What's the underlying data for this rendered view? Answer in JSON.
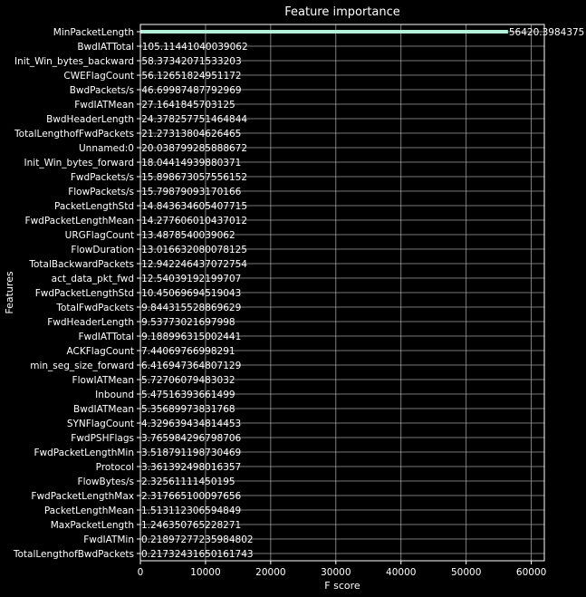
{
  "chart_data": {
    "type": "bar",
    "orientation": "horizontal",
    "title": "Feature importance",
    "xlabel": "F score",
    "ylabel": "Features",
    "xlim": [
      0,
      62000
    ],
    "xticks": [
      0,
      10000,
      20000,
      30000,
      40000,
      50000,
      60000
    ],
    "grid": true,
    "bar_color": "#b3f0d9",
    "background": "#000000",
    "categories": [
      "MinPacketLength",
      "BwdIATTotal",
      "Init_Win_bytes_backward",
      "CWEFlagCount",
      "BwdPackets/s",
      "FwdIATMean",
      "BwdHeaderLength",
      "TotalLengthofFwdPackets",
      "Unnamed:0",
      "Init_Win_bytes_forward",
      "FwdPackets/s",
      "FlowPackets/s",
      "PacketLengthStd",
      "FwdPacketLengthMean",
      "URGFlagCount",
      "FlowDuration",
      "TotalBackwardPackets",
      "act_data_pkt_fwd",
      "FwdPacketLengthStd",
      "TotalFwdPackets",
      "FwdHeaderLength",
      "FwdIATTotal",
      "ACKFlagCount",
      "min_seg_size_forward",
      "FlowIATMean",
      "Inbound",
      "BwdIATMean",
      "SYNFlagCount",
      "FwdPSHFlags",
      "FwdPacketLengthMin",
      "Protocol",
      "FlowBytes/s",
      "FwdPacketLengthMax",
      "PacketLengthMean",
      "MaxPacketLength",
      "FwdIATMin",
      "TotalLengthofBwdPackets"
    ],
    "values": [
      56420.3984375,
      105.11441040039062,
      58.37342071533203,
      56.12651824951172,
      46.69987487792969,
      27.1641845703125,
      24.378257751464844,
      21.27313804626465,
      20.038799285888672,
      18.04414939880371,
      15.898673057556152,
      15.79879093170166,
      14.843634605407715,
      14.277606010437012,
      13.4878540039062,
      13.016632080078125,
      12.942246437072754,
      12.54039192199707,
      10.45069694519043,
      9.844315528869629,
      9.53773021697998,
      9.188996315002441,
      7.44069766998291,
      6.416947364807129,
      5.72706079483032,
      5.47516393661499,
      5.35689973831768,
      4.329639434814453,
      3.765984296798706,
      3.518791198730469,
      3.361392498016357,
      2.32561111450195,
      2.317665100097656,
      1.513112306594849,
      1.246350765228271,
      0.21897277235984802,
      0.21732431650161743
    ],
    "value_labels": [
      "56420.3984375",
      "105.11441040039062",
      "58.37342071533203",
      "56.12651824951172",
      "46.69987487792969",
      "27.1641845703125",
      "24.378257751464844",
      "21.27313804626465",
      "20.038799285888672",
      "18.04414939880371",
      "15.898673057556152",
      "15.79879093170166",
      "14.843634605407715",
      "14.277606010437012",
      "13.4878540039062",
      "13.016632080078125",
      "12.942246437072754",
      "12.54039192199707",
      "10.45069694519043",
      "9.844315528869629",
      "9.53773021697998",
      "9.188996315002441",
      "7.44069766998291",
      "6.416947364807129",
      "5.72706079483032",
      "5.47516393661499",
      "5.35689973831768",
      "4.329639434814453",
      "3.765984296798706",
      "3.518791198730469",
      "3.361392498016357",
      "2.32561111450195",
      "2.317665100097656",
      "1.513112306594849",
      "1.246350765228271",
      "0.21897277235984802",
      "0.21732431650161743"
    ]
  }
}
